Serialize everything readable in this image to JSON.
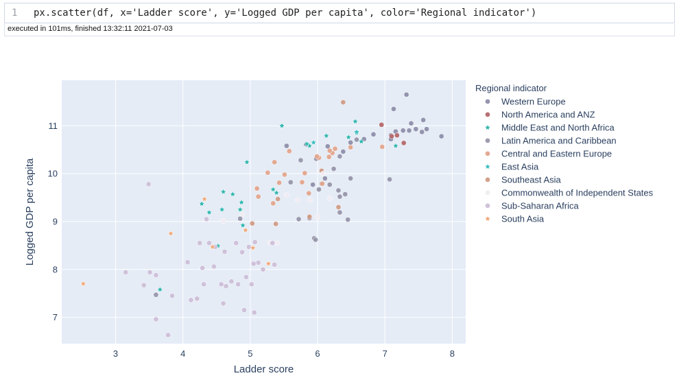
{
  "cell": {
    "line_number": "1",
    "code": "px.scatter(df, x='Ladder score', y='Logged GDP per capita', color='Regional indicator')",
    "execution_info": "executed in 101ms, finished 13:32:11 2021-07-03"
  },
  "chart_data": {
    "type": "scatter",
    "xlabel": "Ladder score",
    "ylabel": "Logged GDP per capita",
    "xlim": [
      2.2,
      8.2
    ],
    "ylim": [
      6.45,
      11.95
    ],
    "xticks": [
      3,
      4,
      5,
      6,
      7,
      8
    ],
    "yticks": [
      7,
      8,
      9,
      10,
      11
    ],
    "grid": true,
    "plot_bg": "#e5ecf6",
    "legend": {
      "title": "Regional indicator",
      "placement": "right"
    },
    "series": [
      {
        "name": "Western Europe",
        "color": "#8e8fab",
        "symbol": "circle",
        "points": [
          [
            7.84,
            10.78
          ],
          [
            7.62,
            10.93
          ],
          [
            7.57,
            11.12
          ],
          [
            7.55,
            10.87
          ],
          [
            7.46,
            10.93
          ],
          [
            7.39,
            11.05
          ],
          [
            7.36,
            10.9
          ],
          [
            7.32,
            11.65
          ],
          [
            7.27,
            10.9
          ],
          [
            7.16,
            10.88
          ],
          [
            7.13,
            11.35
          ],
          [
            7.09,
            10.8
          ],
          [
            7.09,
            10.72
          ],
          [
            6.83,
            10.82
          ],
          [
            6.69,
            10.72
          ],
          [
            6.49,
            10.65
          ],
          [
            6.38,
            10.46
          ],
          [
            6.15,
            10.57
          ],
          [
            6.11,
            9.9
          ],
          [
            5.54,
            10.58
          ],
          [
            5.83,
            10.61
          ],
          [
            5.93,
            9.77
          ]
        ]
      },
      {
        "name": "North America and ANZ",
        "color": "#b4686a",
        "symbol": "circle",
        "points": [
          [
            7.28,
            10.64
          ],
          [
            7.18,
            10.8
          ],
          [
            7.1,
            10.78
          ],
          [
            6.95,
            11.02
          ]
        ]
      },
      {
        "name": "Middle East and North Africa",
        "color": "#34b8b0",
        "symbol": "star",
        "points": [
          [
            7.16,
            10.58
          ],
          [
            6.56,
            11.09
          ],
          [
            6.65,
            10.67
          ],
          [
            6.58,
            10.85
          ],
          [
            6.46,
            10.76
          ],
          [
            6.13,
            10.79
          ],
          [
            5.88,
            10.58
          ],
          [
            5.47,
            11.0
          ],
          [
            5.34,
            9.67
          ],
          [
            4.95,
            10.24
          ],
          [
            4.85,
            9.25
          ],
          [
            4.89,
            8.92
          ],
          [
            4.74,
            9.57
          ],
          [
            4.58,
            9.25
          ],
          [
            4.52,
            8.49
          ],
          [
            4.28,
            9.37
          ],
          [
            4.39,
            9.19
          ],
          [
            5.39,
            9.6
          ],
          [
            5.84,
            10.62
          ],
          [
            3.66,
            7.58
          ],
          [
            4.87,
            9.4
          ],
          [
            4.6,
            9.62
          ]
        ]
      },
      {
        "name": "Latin America and Caribbean",
        "color": "#9796ab",
        "symbol": "circle",
        "points": [
          [
            7.07,
            9.88
          ],
          [
            6.58,
            10.71
          ],
          [
            6.41,
            9.57
          ],
          [
            6.33,
            9.19
          ],
          [
            6.31,
            9.65
          ],
          [
            6.18,
            9.77
          ],
          [
            6.06,
            9.79
          ],
          [
            5.95,
            8.65
          ],
          [
            5.97,
            8.62
          ],
          [
            5.72,
            9.05
          ],
          [
            5.6,
            9.82
          ],
          [
            5.75,
            10.28
          ],
          [
            5.88,
            9.07
          ],
          [
            6.02,
            9.67
          ],
          [
            6.33,
            9.52
          ],
          [
            6.49,
            9.9
          ],
          [
            5.98,
            10.31
          ],
          [
            4.85,
            9.06
          ],
          [
            3.6,
            7.47
          ],
          [
            6.33,
            10.36
          ],
          [
            6.24,
            10.1
          ],
          [
            6.45,
            9.04
          ]
        ]
      },
      {
        "name": "Central and Eastern Europe",
        "color": "#e3a58d",
        "symbol": "circle",
        "points": [
          [
            6.96,
            10.56
          ],
          [
            6.49,
            10.55
          ],
          [
            6.26,
            10.52
          ],
          [
            6.22,
            10.43
          ],
          [
            6.18,
            10.48
          ],
          [
            6.17,
            10.35
          ],
          [
            6.02,
            10.33
          ],
          [
            5.99,
            10.36
          ],
          [
            5.81,
            10.01
          ],
          [
            5.77,
            9.82
          ],
          [
            5.51,
            9.98
          ],
          [
            5.36,
            10.24
          ],
          [
            5.26,
            10.02
          ],
          [
            5.1,
            9.69
          ],
          [
            5.12,
            9.52
          ],
          [
            5.58,
            10.47
          ],
          [
            5.43,
            9.81
          ],
          [
            5.34,
            9.38
          ],
          [
            6.07,
            9.79
          ],
          [
            5.87,
            9.59
          ]
        ]
      },
      {
        "name": "East Asia",
        "color": "#3fbfc2",
        "symbol": "star",
        "points": [
          [
            6.58,
            10.87
          ],
          [
            5.94,
            10.65
          ]
        ]
      },
      {
        "name": "Southeast Asia",
        "color": "#d09c86",
        "symbol": "circle",
        "points": [
          [
            6.38,
            11.49
          ],
          [
            5.88,
            9.1
          ],
          [
            6.31,
            9.3
          ],
          [
            5.38,
            8.95
          ],
          [
            5.03,
            8.96
          ],
          [
            5.41,
            9.47
          ],
          [
            6.06,
            10.06
          ]
        ]
      },
      {
        "name": "Commonwealth of Independent States",
        "color": "#f0ecf2",
        "symbol": "circle",
        "points": [
          [
            6.18,
            9.48
          ],
          [
            6.08,
            10.0
          ],
          [
            6.0,
            9.1
          ],
          [
            5.89,
            9.45
          ],
          [
            5.7,
            9.45
          ],
          [
            5.54,
            9.55
          ],
          [
            5.4,
            8.55
          ],
          [
            5.29,
            8.56
          ],
          [
            4.88,
            9.15
          ],
          [
            4.6,
            9.01
          ]
        ]
      },
      {
        "name": "Sub-Saharan Africa",
        "color": "#cdbfd8",
        "symbol": "circle",
        "points": [
          [
            3.49,
            9.78
          ],
          [
            3.15,
            7.94
          ],
          [
            3.42,
            7.67
          ],
          [
            3.51,
            7.94
          ],
          [
            3.6,
            7.88
          ],
          [
            3.6,
            6.96
          ],
          [
            3.78,
            6.63
          ],
          [
            3.84,
            7.45
          ],
          [
            4.07,
            8.15
          ],
          [
            4.12,
            7.36
          ],
          [
            4.21,
            7.38
          ],
          [
            4.25,
            8.55
          ],
          [
            4.29,
            8.03
          ],
          [
            4.31,
            7.69
          ],
          [
            4.35,
            9.05
          ],
          [
            4.39,
            8.55
          ],
          [
            4.46,
            8.06
          ],
          [
            4.57,
            7.69
          ],
          [
            4.62,
            8.37
          ],
          [
            4.6,
            7.29
          ],
          [
            4.72,
            7.75
          ],
          [
            4.82,
            7.69
          ],
          [
            4.91,
            7.15
          ],
          [
            5.02,
            7.69
          ],
          [
            4.98,
            8.47
          ],
          [
            5.05,
            8.12
          ],
          [
            5.06,
            7.1
          ],
          [
            5.12,
            8.14
          ],
          [
            5.07,
            8.57
          ],
          [
            5.33,
            8.55
          ],
          [
            5.36,
            8.1
          ],
          [
            4.79,
            8.55
          ],
          [
            4.88,
            8.36
          ],
          [
            4.48,
            8.47
          ],
          [
            4.21,
            7.39
          ],
          [
            4.94,
            7.84
          ],
          [
            4.64,
            7.65
          ],
          [
            5.19,
            8.0
          ]
        ]
      },
      {
        "name": "South Asia",
        "color": "#f2a97a",
        "symbol": "star",
        "points": [
          [
            2.52,
            7.7
          ],
          [
            3.82,
            8.75
          ],
          [
            4.32,
            9.47
          ],
          [
            4.93,
            8.82
          ],
          [
            5.27,
            8.12
          ],
          [
            5.04,
            8.45
          ],
          [
            4.44,
            8.47
          ]
        ]
      }
    ]
  }
}
